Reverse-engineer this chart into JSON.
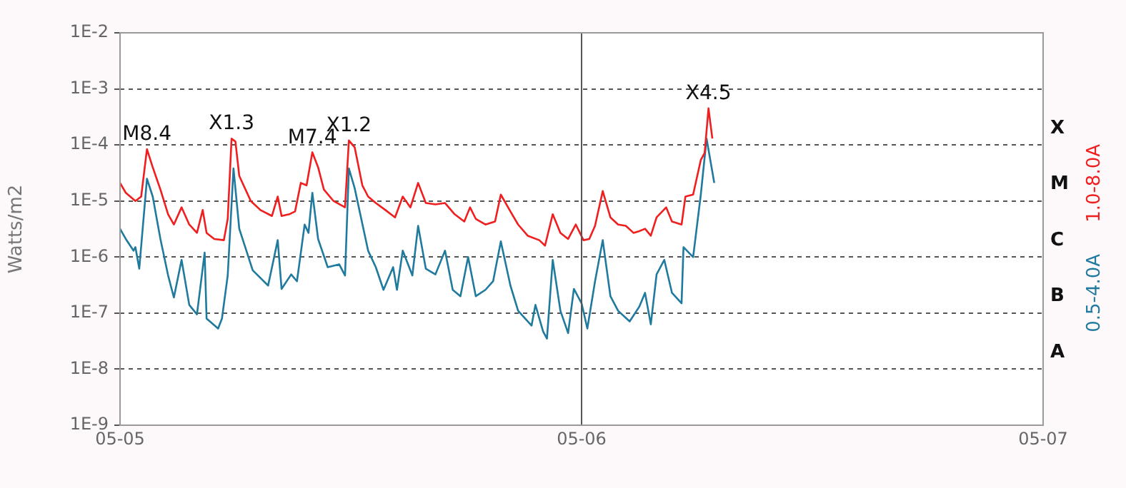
{
  "chart_data": {
    "type": "line",
    "ylabel": "Watts/m2",
    "log": true,
    "grid": "y",
    "ref_lines": [
      {
        "axis": "x",
        "value": "--05-06",
        "color": "#555555",
        "line_style": "solid"
      }
    ],
    "legend": "right",
    "xlim": [
      "--05-05",
      "--05-07"
    ],
    "xticks": [
      {
        "value": "--05-05",
        "label": "05-05"
      },
      {
        "value": "--05-06",
        "label": "05-06"
      },
      {
        "value": "--05-07",
        "label": "05-07"
      }
    ],
    "ylim": [
      1e-09,
      0.01
    ],
    "yticks": [
      {
        "value": 1e-09,
        "label": "1E-9"
      },
      {
        "value": 1e-08,
        "label": "1E-8"
      },
      {
        "value": 1e-07,
        "label": "1E-7"
      },
      {
        "value": 1e-06,
        "label": "1E-6"
      },
      {
        "value": 1e-05,
        "label": "1E-5"
      },
      {
        "value": 0.0001,
        "label": "1E-4"
      },
      {
        "value": 0.001,
        "label": "1E-3"
      },
      {
        "value": 0.01,
        "label": "1E-2"
      }
    ],
    "annotations": [
      {
        "text": "M8.4",
        "x": "--05-05T01:24",
        "y": 8.4e-05
      },
      {
        "text": "X1.3",
        "x": "--05-05T05:48",
        "y": 0.00013
      },
      {
        "text": "M7.4",
        "x": "--05-05T10:00",
        "y": 7.4e-05
      },
      {
        "text": "X1.2",
        "x": "--05-05T11:54",
        "y": 0.00012
      },
      {
        "text": "X4.5",
        "x": "--05-06T06:36",
        "y": 0.00045
      },
      "X",
      "M",
      "C",
      "B",
      "A"
    ],
    "series": [
      {
        "name": "1.0-8.0A",
        "color": "#f01e1e",
        "x": [
          "--05-05T00:00",
          "--05-05T00:18",
          "--05-05T00:48",
          "--05-05T01:06",
          "--05-05T01:24",
          "--05-05T01:42",
          "--05-05T02:06",
          "--05-05T02:30",
          "--05-05T02:48",
          "--05-05T03:12",
          "--05-05T03:36",
          "--05-05T04:00",
          "--05-05T04:18",
          "--05-05T04:30",
          "--05-05T04:54",
          "--05-05T05:24",
          "--05-05T05:36",
          "--05-05T05:48",
          "--05-05T06:00",
          "--05-05T06:12",
          "--05-05T06:48",
          "--05-05T07:18",
          "--05-05T07:54",
          "--05-05T08:12",
          "--05-05T08:24",
          "--05-05T08:48",
          "--05-05T09:06",
          "--05-05T09:24",
          "--05-05T09:42",
          "--05-05T10:00",
          "--05-05T10:18",
          "--05-05T10:36",
          "--05-05T11:06",
          "--05-05T11:42",
          "--05-05T11:54",
          "--05-05T12:12",
          "--05-05T12:36",
          "--05-05T12:54",
          "--05-05T13:18",
          "--05-05T13:48",
          "--05-05T14:18",
          "--05-05T14:42",
          "--05-05T15:06",
          "--05-05T15:30",
          "--05-05T15:54",
          "--05-05T16:24",
          "--05-05T16:54",
          "--05-05T17:24",
          "--05-05T17:54",
          "--05-05T18:12",
          "--05-05T18:30",
          "--05-05T19:00",
          "--05-05T19:30",
          "--05-05T19:48",
          "--05-05T20:18",
          "--05-05T20:42",
          "--05-05T21:12",
          "--05-05T21:48",
          "--05-05T22:06",
          "--05-05T22:30",
          "--05-05T22:54",
          "--05-05T23:18",
          "--05-05T23:42",
          "--05-06T00:06",
          "--05-06T00:24",
          "--05-06T00:42",
          "--05-06T01:06",
          "--05-06T01:30",
          "--05-06T01:54",
          "--05-06T02:18",
          "--05-06T02:42",
          "--05-06T03:00",
          "--05-06T03:18",
          "--05-06T03:36",
          "--05-06T03:54",
          "--05-06T04:24",
          "--05-06T04:42",
          "--05-06T05:12",
          "--05-06T05:24",
          "--05-06T05:48",
          "--05-06T06:12",
          "--05-06T06:24",
          "--05-06T06:36",
          "--05-06T06:48"
        ],
        "values": [
          2.1e-05,
          1.4e-05,
          1e-05,
          1.2e-05,
          8.4e-05,
          4e-05,
          1.6e-05,
          5.8e-06,
          3.8e-06,
          7.7e-06,
          3.8e-06,
          2.7e-06,
          6.9e-06,
          2.7e-06,
          2.1e-06,
          2e-06,
          4.8e-06,
          0.00013,
          0.000115,
          2.8e-05,
          1e-05,
          6.9e-06,
          5.4e-06,
          1.2e-05,
          5.4e-06,
          5.8e-06,
          6.5e-06,
          2.1e-05,
          1.9e-05,
          7.4e-05,
          4e-05,
          1.6e-05,
          1e-05,
          7.7e-06,
          0.00012,
          9.1e-05,
          1.9e-05,
          1.2e-05,
          9.2e-06,
          6.9e-06,
          5.1e-06,
          1.2e-05,
          7.7e-06,
          2.1e-05,
          9.2e-06,
          8.7e-06,
          9.2e-06,
          5.8e-06,
          4.3e-06,
          7.7e-06,
          4.8e-06,
          3.8e-06,
          4.3e-06,
          1.3e-05,
          6.5e-06,
          3.8e-06,
          2.4e-06,
          2e-06,
          1.6e-06,
          5.8e-06,
          2.7e-06,
          2.1e-06,
          3.8e-06,
          2e-06,
          2.1e-06,
          3.6e-06,
          1.5e-05,
          5.1e-06,
          3.8e-06,
          3.6e-06,
          2.7e-06,
          2.9e-06,
          3.2e-06,
          2.4e-06,
          5.1e-06,
          7.7e-06,
          4.3e-06,
          3.8e-06,
          1.2e-05,
          1.3e-05,
          5.4e-05,
          7.2e-05,
          0.00045,
          0.00013
        ]
      },
      {
        "name": "0.5-4.0A",
        "color": "#1f7a9e",
        "x": [
          "--05-05T00:00",
          "--05-05T00:18",
          "--05-05T00:42",
          "--05-05T00:48",
          "--05-05T01:00",
          "--05-05T01:24",
          "--05-05T01:42",
          "--05-05T02:06",
          "--05-05T02:30",
          "--05-05T02:48",
          "--05-05T03:12",
          "--05-05T03:36",
          "--05-05T04:00",
          "--05-05T04:24",
          "--05-05T04:30",
          "--05-05T05:06",
          "--05-05T05:18",
          "--05-05T05:36",
          "--05-05T05:54",
          "--05-05T06:12",
          "--05-05T06:54",
          "--05-05T07:42",
          "--05-05T08:12",
          "--05-05T08:24",
          "--05-05T08:54",
          "--05-05T09:12",
          "--05-05T09:36",
          "--05-05T09:48",
          "--05-05T10:00",
          "--05-05T10:18",
          "--05-05T10:48",
          "--05-05T11:24",
          "--05-05T11:42",
          "--05-05T11:54",
          "--05-05T12:12",
          "--05-05T12:54",
          "--05-05T13:18",
          "--05-05T13:42",
          "--05-05T14:12",
          "--05-05T14:24",
          "--05-05T14:42",
          "--05-05T15:12",
          "--05-05T15:30",
          "--05-05T15:54",
          "--05-05T16:24",
          "--05-05T16:54",
          "--05-05T17:18",
          "--05-05T17:42",
          "--05-05T18:06",
          "--05-05T18:30",
          "--05-05T19:00",
          "--05-05T19:24",
          "--05-05T19:48",
          "--05-05T20:18",
          "--05-05T20:42",
          "--05-05T21:24",
          "--05-05T21:36",
          "--05-05T22:00",
          "--05-05T22:12",
          "--05-05T22:30",
          "--05-05T22:54",
          "--05-05T23:18",
          "--05-05T23:36",
          "--05-06T00:00",
          "--05-06T00:18",
          "--05-06T00:42",
          "--05-06T01:06",
          "--05-06T01:30",
          "--05-06T01:54",
          "--05-06T02:30",
          "--05-06T03:00",
          "--05-06T03:18",
          "--05-06T03:36",
          "--05-06T03:54",
          "--05-06T04:18",
          "--05-06T04:42",
          "--05-06T05:12",
          "--05-06T05:18",
          "--05-06T05:48",
          "--05-06T06:12",
          "--05-06T06:30",
          "--05-06T06:54"
        ],
        "values": [
          3.2e-06,
          2.1e-06,
          1.3e-06,
          1.5e-06,
          6.2e-07,
          2.5e-05,
          1.2e-05,
          2.1e-06,
          4.7e-07,
          1.9e-07,
          8.9e-07,
          1.4e-07,
          9.5e-08,
          1.2e-06,
          8e-08,
          5.3e-08,
          8e-08,
          4.7e-07,
          3.8e-05,
          3.2e-06,
          5.8e-07,
          3.1e-07,
          2e-06,
          2.7e-07,
          4.9e-07,
          3.7e-07,
          3.8e-06,
          2.7e-06,
          1.4e-05,
          2.1e-06,
          6.6e-07,
          7.4e-07,
          4.7e-07,
          3.8e-05,
          1.7e-05,
          1.3e-06,
          6.6e-07,
          2.6e-07,
          6.6e-07,
          2.6e-07,
          1.3e-06,
          4.7e-07,
          3.6e-06,
          6.2e-07,
          4.9e-07,
          1.3e-06,
          2.6e-07,
          2e-07,
          1e-06,
          2e-07,
          2.6e-07,
          3.7e-07,
          1.9e-06,
          3.1e-07,
          1.1e-07,
          6e-08,
          1.4e-07,
          4.7e-08,
          3.5e-08,
          8.9e-07,
          1.1e-07,
          4.4e-08,
          2.7e-07,
          1.5e-07,
          5.3e-08,
          3.7e-07,
          2e-06,
          2e-07,
          1.1e-07,
          7.1e-08,
          1.3e-07,
          2.3e-07,
          6.3e-08,
          4.9e-07,
          8.9e-07,
          2.3e-07,
          1.5e-07,
          1.5e-06,
          1e-06,
          1.3e-05,
          0.00013,
          2.1e-05
        ]
      }
    ]
  }
}
